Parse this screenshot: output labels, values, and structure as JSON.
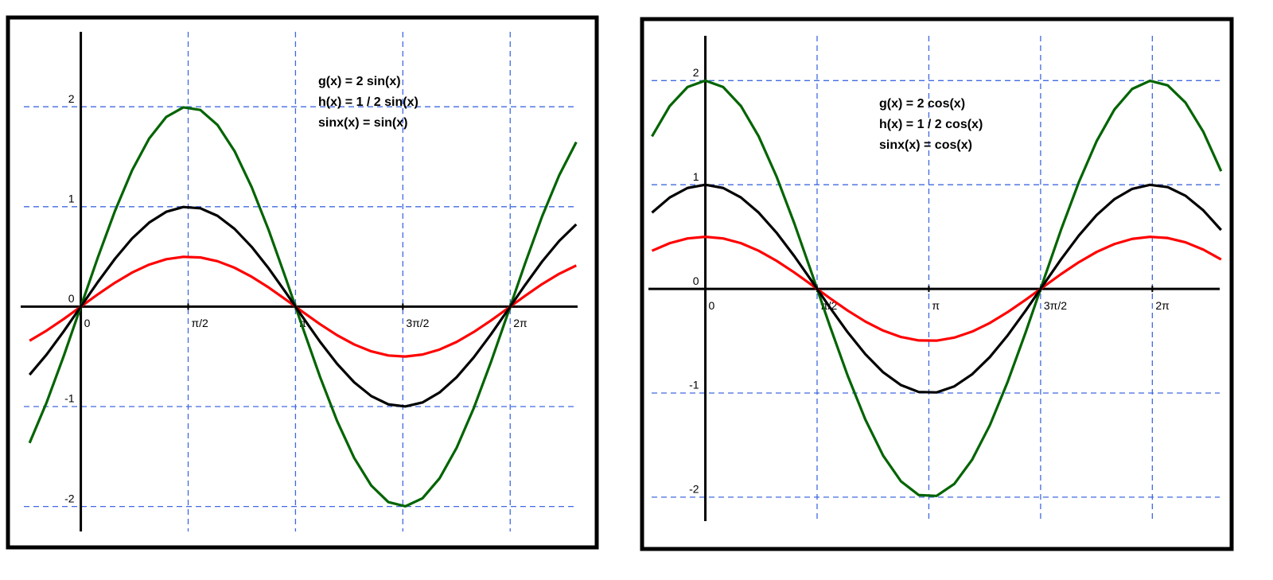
{
  "chart_data": [
    {
      "type": "line",
      "x": [
        -0.75,
        -0.5,
        -0.25,
        0,
        0.25,
        0.5,
        0.75,
        1,
        1.25,
        1.5,
        1.75,
        2,
        2.25,
        2.5,
        2.75,
        3,
        3.25,
        3.5,
        3.75,
        4,
        4.25,
        4.5,
        4.75,
        5,
        5.25,
        5.5,
        5.75,
        6,
        6.25,
        6.5,
        6.75,
        7,
        7.25
      ],
      "series": [
        {
          "name": "g(x) = 2 sin(x)",
          "color": "#006400",
          "values": [
            -1.364,
            -0.958,
            -0.494,
            0,
            0.494,
            0.958,
            1.364,
            1.682,
            1.898,
            1.994,
            1.968,
            1.818,
            1.556,
            1.196,
            0.764,
            0.282,
            -0.216,
            -0.702,
            -1.144,
            -1.514,
            -1.79,
            -1.956,
            -1.998,
            -1.918,
            -1.718,
            -1.412,
            -1.016,
            -0.558,
            -0.066,
            0.43,
            0.902,
            1.314,
            1.646
          ]
        },
        {
          "name": "h(x) = 1 / 2 sin(x)",
          "color": "#ff0000",
          "values": [
            -0.341,
            -0.2395,
            -0.1235,
            0,
            0.1235,
            0.2395,
            0.341,
            0.4205,
            0.4745,
            0.4985,
            0.492,
            0.4545,
            0.389,
            0.299,
            0.191,
            0.0705,
            -0.054,
            -0.1755,
            -0.286,
            -0.3785,
            -0.4475,
            -0.489,
            -0.4995,
            -0.4795,
            -0.4295,
            -0.353,
            -0.254,
            -0.1395,
            -0.0165,
            0.1075,
            0.2255,
            0.3285,
            0.4115
          ]
        },
        {
          "name": "sinx(x) = sin(x)",
          "color": "#000000",
          "values": [
            -0.682,
            -0.479,
            -0.247,
            0,
            0.247,
            0.479,
            0.682,
            0.841,
            0.949,
            0.997,
            0.984,
            0.909,
            0.778,
            0.598,
            0.382,
            0.141,
            -0.108,
            -0.351,
            -0.572,
            -0.757,
            -0.895,
            -0.978,
            -0.999,
            -0.959,
            -0.859,
            -0.706,
            -0.508,
            -0.279,
            -0.033,
            0.215,
            0.451,
            0.657,
            0.823
          ]
        }
      ],
      "xlim": [
        -0.88,
        7.27
      ],
      "ylim": [
        -2.25,
        2.75
      ],
      "xticks": [
        0,
        {
          "value": 1.5708,
          "label": "π/2"
        },
        {
          "value": 3.1416,
          "label": "π"
        },
        {
          "value": 4.7124,
          "label": "3π/2"
        },
        {
          "value": 6.2832,
          "label": "2π"
        }
      ],
      "yticks": [
        -2,
        -1,
        0,
        1,
        2
      ],
      "grid": true
    },
    {
      "type": "line",
      "x": [
        -0.75,
        -0.5,
        -0.25,
        0,
        0.25,
        0.5,
        0.75,
        1,
        1.25,
        1.5,
        1.75,
        2,
        2.25,
        2.5,
        2.75,
        3,
        3.25,
        3.5,
        3.75,
        4,
        4.25,
        4.5,
        4.75,
        5,
        5.25,
        5.5,
        5.75,
        6,
        6.25,
        6.5,
        6.75,
        7,
        7.25
      ],
      "series": [
        {
          "name": "g(x) = 2 cos(x)",
          "color": "#006400",
          "values": [
            1.464,
            1.756,
            1.938,
            2,
            1.938,
            1.756,
            1.464,
            1.08,
            0.63,
            0.142,
            -0.356,
            -0.832,
            -1.256,
            -1.602,
            -1.848,
            -1.98,
            -1.988,
            -1.872,
            -1.64,
            -1.308,
            -0.892,
            -0.422,
            0.074,
            0.568,
            1.024,
            1.418,
            1.722,
            1.92,
            1.998,
            1.954,
            1.788,
            1.508,
            1.13
          ]
        },
        {
          "name": "h(x) = 1 / 2 cos(x)",
          "color": "#ff0000",
          "values": [
            0.366,
            0.439,
            0.4845,
            0.5,
            0.4845,
            0.439,
            0.366,
            0.27,
            0.1575,
            0.0355,
            -0.089,
            -0.208,
            -0.314,
            -0.4005,
            -0.462,
            -0.495,
            -0.497,
            -0.468,
            -0.41,
            -0.327,
            -0.223,
            -0.1055,
            0.0185,
            0.142,
            0.256,
            0.3545,
            0.4305,
            0.48,
            0.4995,
            0.4885,
            0.447,
            0.377,
            0.2825
          ]
        },
        {
          "name": "sinx(x) = cos(x)",
          "color": "#000000",
          "values": [
            0.732,
            0.878,
            0.969,
            1,
            0.969,
            0.878,
            0.732,
            0.54,
            0.315,
            0.071,
            -0.178,
            -0.416,
            -0.628,
            -0.801,
            -0.924,
            -0.99,
            -0.994,
            -0.936,
            -0.82,
            -0.654,
            -0.446,
            -0.211,
            0.037,
            0.284,
            0.512,
            0.709,
            0.861,
            0.96,
            0.999,
            0.977,
            0.894,
            0.754,
            0.565
          ]
        }
      ],
      "xlim": [
        -0.8,
        7.23
      ],
      "ylim": [
        -2.23,
        2.43
      ],
      "xticks": [
        0,
        {
          "value": 1.5708,
          "label": "π/2"
        },
        {
          "value": 3.1416,
          "label": "π"
        },
        {
          "value": 4.7124,
          "label": "3π/2"
        },
        {
          "value": 6.2832,
          "label": "2π"
        }
      ],
      "yticks": [
        -2,
        -1,
        0,
        1,
        2
      ],
      "grid": true
    }
  ]
}
